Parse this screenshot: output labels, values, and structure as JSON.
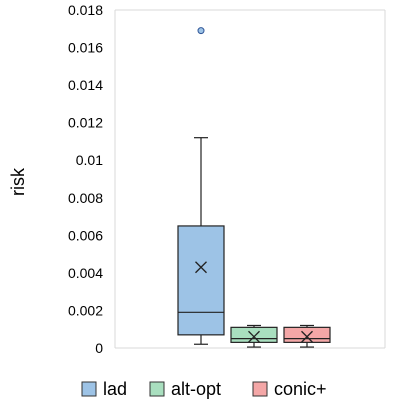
{
  "chart_data": {
    "type": "box",
    "ylabel": "risk",
    "ylim": [
      0,
      0.018
    ],
    "yticks": [
      "0",
      "0.002",
      "0.004",
      "0.006",
      "0.008",
      "0.01",
      "0.012",
      "0.014",
      "0.016",
      "0.018"
    ],
    "grid": false,
    "legend_position": "bottom",
    "series": [
      {
        "name": "lad",
        "color": "#9DC3E6",
        "min": 0.0002,
        "q1": 0.0007,
        "median": 0.0019,
        "q3": 0.0065,
        "max": 0.0112,
        "mean": 0.0043,
        "outliers": [
          0.0169
        ]
      },
      {
        "name": "alt-opt",
        "color": "#A9DFBF",
        "min": 5e-05,
        "q1": 0.0003,
        "median": 0.0005,
        "q3": 0.0011,
        "max": 0.0012,
        "mean": 0.0006,
        "outliers": []
      },
      {
        "name": "conic+",
        "color": "#F4A7A7",
        "min": 5e-05,
        "q1": 0.0003,
        "median": 0.0005,
        "q3": 0.0011,
        "max": 0.0012,
        "mean": 0.0006,
        "outliers": []
      }
    ]
  }
}
